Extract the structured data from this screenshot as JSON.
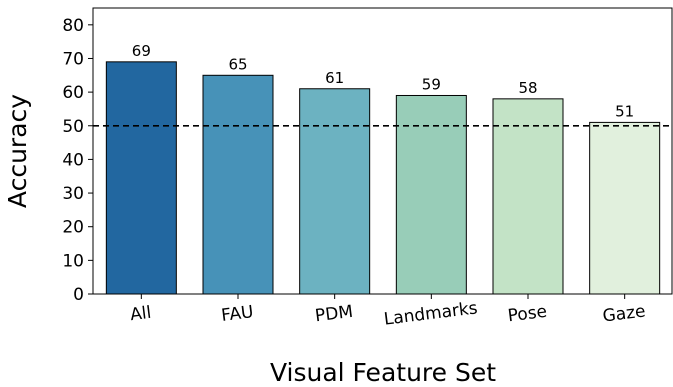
{
  "chart_data": {
    "type": "bar",
    "title": "",
    "xlabel": "Visual Feature Set",
    "ylabel": "Accuracy",
    "categories": [
      "All",
      "FAU",
      "PDM",
      "Landmarks",
      "Pose",
      "Gaze"
    ],
    "values": [
      69,
      65,
      61,
      59,
      58,
      51
    ],
    "data_labels": [
      "69",
      "65",
      "61",
      "59",
      "58",
      "51"
    ],
    "bar_colors": [
      "#2267a0",
      "#4792b8",
      "#6cb2c1",
      "#98cdb8",
      "#c3e3c6",
      "#e1f0dd"
    ],
    "ylim": [
      0,
      85
    ],
    "yticks": [
      0,
      10,
      20,
      30,
      40,
      50,
      60,
      70,
      80
    ],
    "ytick_labels": [
      "0",
      "10",
      "20",
      "30",
      "40",
      "50",
      "60",
      "70",
      "80"
    ],
    "reference_line": {
      "value": 50,
      "style": "dashed",
      "color": "#000000"
    },
    "grid": false,
    "legend": "none"
  }
}
